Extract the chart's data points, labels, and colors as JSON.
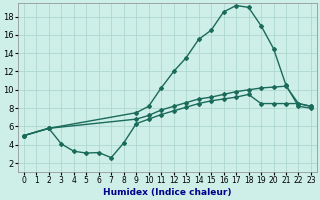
{
  "bg_color": "#ceeee8",
  "grid_color": "#aed8d0",
  "line_color": "#1a6b5a",
  "line_width": 1.0,
  "marker": "D",
  "marker_size": 2.0,
  "xlabel": "Humidex (Indice chaleur)",
  "xlim": [
    -0.5,
    23.5
  ],
  "ylim": [
    1,
    19.5
  ],
  "yticks": [
    2,
    4,
    6,
    8,
    10,
    12,
    14,
    16,
    18
  ],
  "xticks": [
    0,
    1,
    2,
    3,
    4,
    5,
    6,
    7,
    8,
    9,
    10,
    11,
    12,
    13,
    14,
    15,
    16,
    17,
    18,
    19,
    20,
    21,
    22,
    23
  ],
  "series1_x": [
    0,
    2,
    3,
    4,
    5,
    6,
    7,
    8,
    9,
    10,
    11,
    12,
    13,
    14,
    15,
    16,
    17,
    18,
    19,
    20,
    21,
    22,
    23
  ],
  "series1_y": [
    5.0,
    5.8,
    4.1,
    3.3,
    3.1,
    3.15,
    2.6,
    4.2,
    6.3,
    6.8,
    7.3,
    7.7,
    8.1,
    8.5,
    8.8,
    9.0,
    9.2,
    9.5,
    8.5,
    8.5,
    8.5,
    8.5,
    8.2
  ],
  "series2_x": [
    0,
    2,
    9,
    10,
    11,
    12,
    13,
    14,
    15,
    16,
    17,
    18,
    19,
    20,
    21,
    22,
    23
  ],
  "series2_y": [
    5.0,
    5.8,
    7.5,
    8.2,
    10.2,
    12.0,
    13.5,
    15.5,
    16.5,
    18.5,
    19.2,
    19.0,
    17.0,
    14.5,
    10.5,
    8.2,
    8.0
  ],
  "series3_x": [
    0,
    2,
    9,
    10,
    11,
    12,
    13,
    14,
    15,
    16,
    17,
    18,
    19,
    20,
    21,
    22,
    23
  ],
  "series3_y": [
    5.0,
    5.8,
    6.8,
    7.2,
    7.8,
    8.2,
    8.6,
    9.0,
    9.2,
    9.5,
    9.8,
    10.0,
    10.2,
    10.3,
    10.4,
    8.5,
    8.2
  ],
  "xlabel_color": "#00008b",
  "xlabel_fontsize": 6.5,
  "tick_fontsize": 5.5,
  "tick_color": "#000000"
}
